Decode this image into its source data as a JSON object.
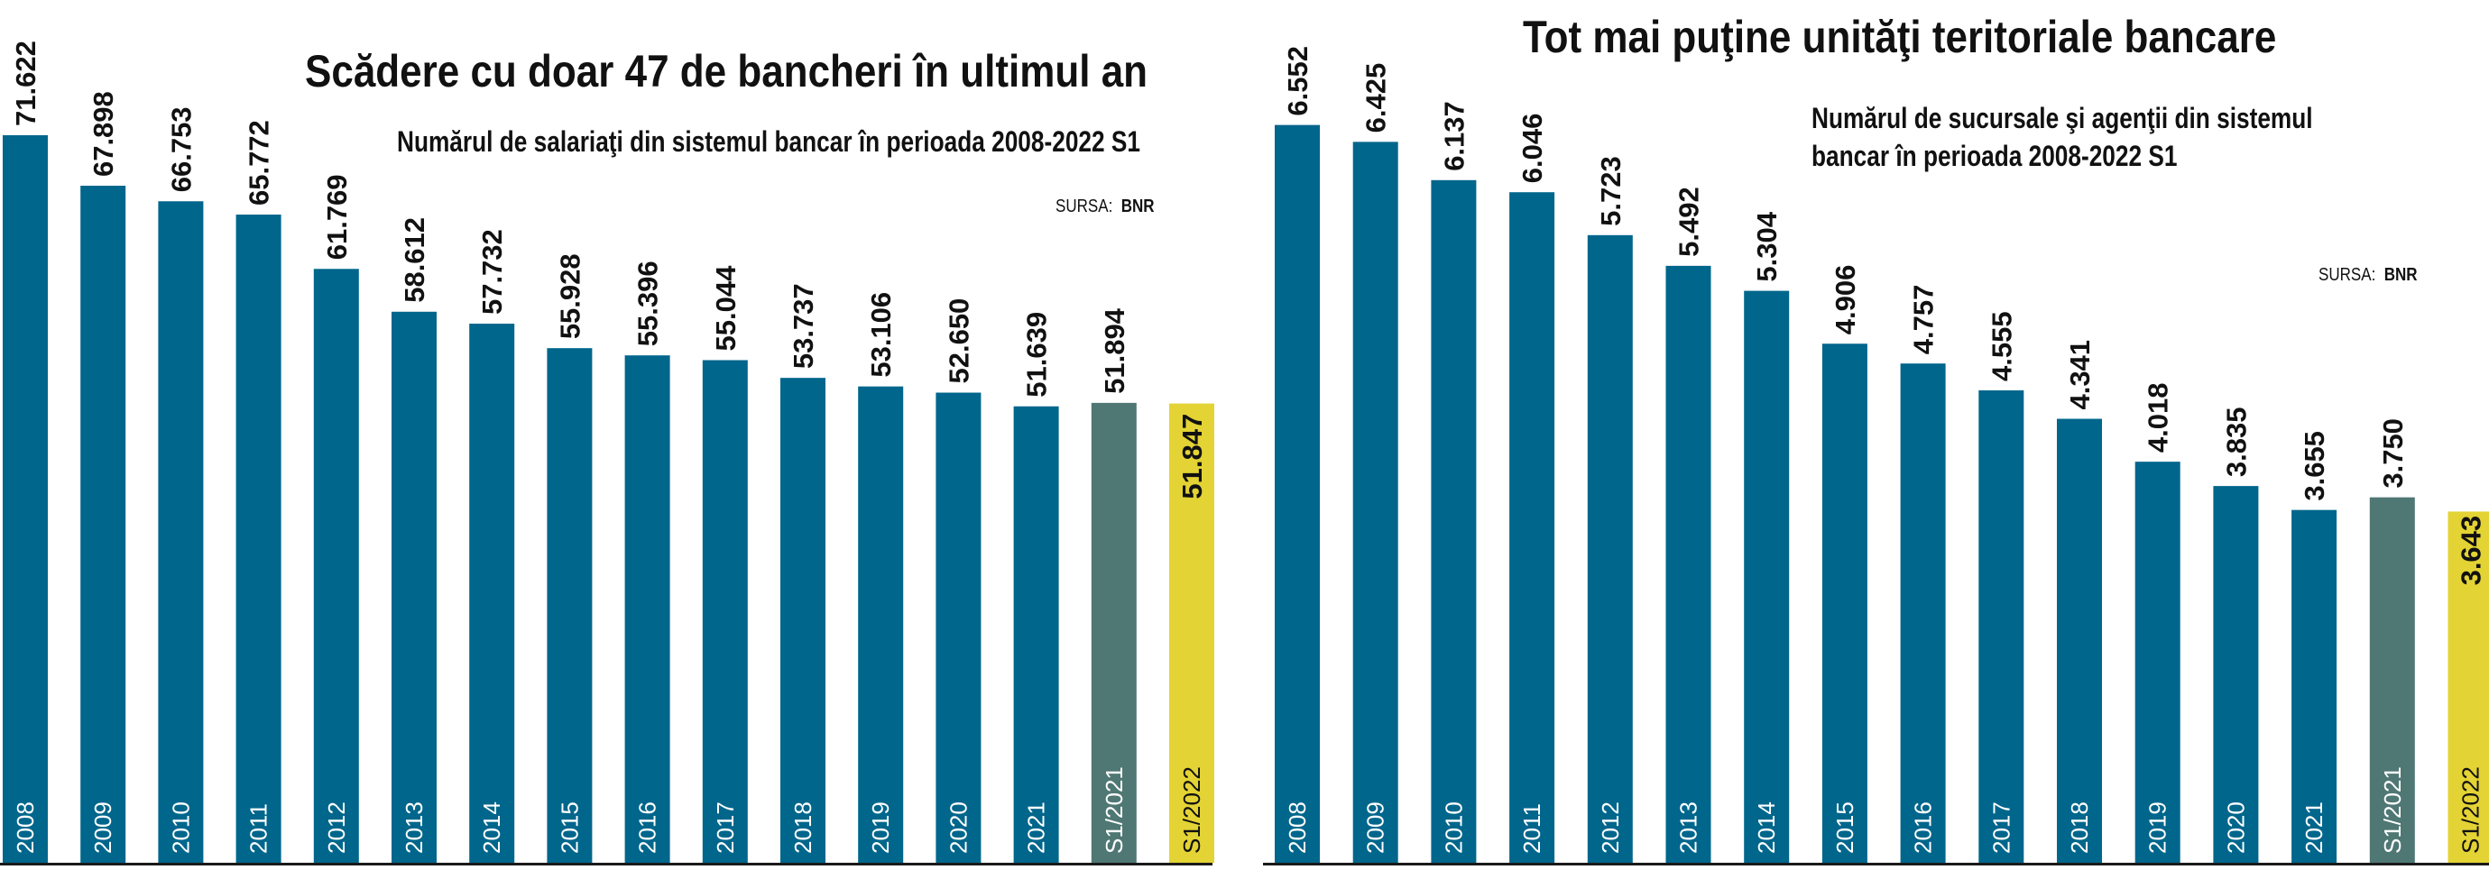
{
  "colors": {
    "bar": "#00668c",
    "bar_s1_2021": "#4f7774",
    "bar_s1_2022": "#e3d334",
    "text": "#111111"
  },
  "left": {
    "title": "Scădere cu doar 47 de bancheri în ultimul an",
    "subtitle": "Numărul de salariaţi din sistemul bancar în perioada 2008-2022 S1",
    "source_label": "SURSA:",
    "source_value": "BNR"
  },
  "right": {
    "title": "Tot mai puţine unităţi teritoriale bancare",
    "subtitle_line1": "Numărul de sucursale şi agenţii din sistemul",
    "subtitle_line2": "bancar în perioada 2008-2022 S1",
    "source_label": "SURSA:",
    "source_value": "BNR"
  },
  "chart_data": [
    {
      "type": "bar",
      "title": "Scădere cu doar 47 de bancheri în ultimul an",
      "subtitle": "Numărul de salariaţi din sistemul bancar în perioada 2008-2022 S1",
      "categories": [
        "2008",
        "2009",
        "2010",
        "2011",
        "2012",
        "2013",
        "2014",
        "2015",
        "2016",
        "2017",
        "2018",
        "2019",
        "2020",
        "2021",
        "S1/2021",
        "S1/2022"
      ],
      "values": [
        71622,
        67898,
        66753,
        65772,
        61769,
        58612,
        57732,
        55928,
        55396,
        55044,
        53737,
        53106,
        52650,
        51639,
        51894,
        51847
      ],
      "value_labels": [
        "71.622",
        "67.898",
        "66.753",
        "65.772",
        "61.769",
        "58.612",
        "57.732",
        "55.928",
        "55.396",
        "55.044",
        "53.737",
        "53.106",
        "52.650",
        "51.639",
        "51.894",
        "51.847"
      ],
      "highlight": {
        "S1/2021": "#4f7774",
        "S1/2022": "#e3d334"
      },
      "grid": false,
      "legend": "none"
    },
    {
      "type": "bar",
      "title": "Tot mai puţine unităţi teritoriale bancare",
      "subtitle": "Numărul de sucursale şi agenţii din sistemul bancar în perioada 2008-2022 S1",
      "categories": [
        "2008",
        "2009",
        "2010",
        "2011",
        "2012",
        "2013",
        "2014",
        "2015",
        "2016",
        "2017",
        "2018",
        "2019",
        "2020",
        "2021",
        "S1/2021",
        "S1/2022"
      ],
      "values": [
        6552,
        6425,
        6137,
        6046,
        5723,
        5492,
        5304,
        4906,
        4757,
        4555,
        4341,
        4018,
        3835,
        3655,
        3750,
        3643
      ],
      "value_labels": [
        "6.552",
        "6.425",
        "6.137",
        "6.046",
        "5.723",
        "5.492",
        "5.304",
        "4.906",
        "4.757",
        "4.555",
        "4.341",
        "4.018",
        "3.835",
        "3.655",
        "3.750",
        "3.643"
      ],
      "highlight": {
        "S1/2021": "#4f7774",
        "S1/2022": "#e3d334"
      },
      "grid": false,
      "legend": "none"
    }
  ]
}
